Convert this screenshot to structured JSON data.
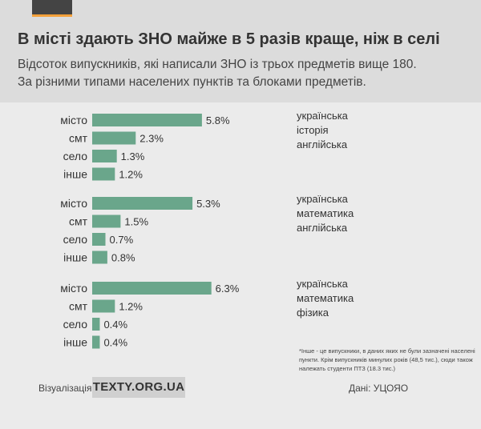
{
  "header": {
    "title": "В місті здають ЗНО майже в 5 разів краще, ніж в селі",
    "subtitle_line1": "Відсоток випускників, які написали ЗНО із трьох предметів вище 180.",
    "subtitle_line2": "За різними типами населених пунктів та блоками предметів."
  },
  "chart_data": {
    "type": "bar",
    "orientation": "horizontal",
    "groups": [
      {
        "subjects": [
          "українська",
          "історія",
          "англійська"
        ],
        "categories": [
          "місто",
          "смт",
          "село",
          "інше"
        ],
        "values": [
          5.8,
          2.3,
          1.3,
          1.2
        ],
        "value_labels": [
          "5.8%",
          "2.3%",
          "1.3%",
          "1.2%"
        ]
      },
      {
        "subjects": [
          "українська",
          "математика",
          "англійська"
        ],
        "categories": [
          "місто",
          "смт",
          "село",
          "інше"
        ],
        "values": [
          5.3,
          1.5,
          0.7,
          0.8
        ],
        "value_labels": [
          "5.3%",
          "1.5%",
          "0.7%",
          "0.8%"
        ]
      },
      {
        "subjects": [
          "українська",
          "математика",
          "фізика"
        ],
        "categories": [
          "місто",
          "смт",
          "село",
          "інше"
        ],
        "values": [
          6.3,
          1.2,
          0.4,
          0.4
        ],
        "value_labels": [
          "6.3%",
          "1.2%",
          "0.4%",
          "0.4%"
        ]
      }
    ],
    "bar_color": "#6aa68b",
    "grid": false
  },
  "footnote": "*Інше - це випускники, в даних яких не були зазначені населені пункти. Крім випускників минулих років (48,5 тис.), сюди також належать студенти ПТЗ (18.3 тис.)",
  "footer": {
    "credit_label": "Візуалізація –",
    "brand": "TEXTY.ORG.UA",
    "source": "Дані: УЦОЯО"
  },
  "colors": {
    "header_bg": "#dcdcdc",
    "page_bg": "#ebebeb",
    "accent": "#f4a13a"
  }
}
